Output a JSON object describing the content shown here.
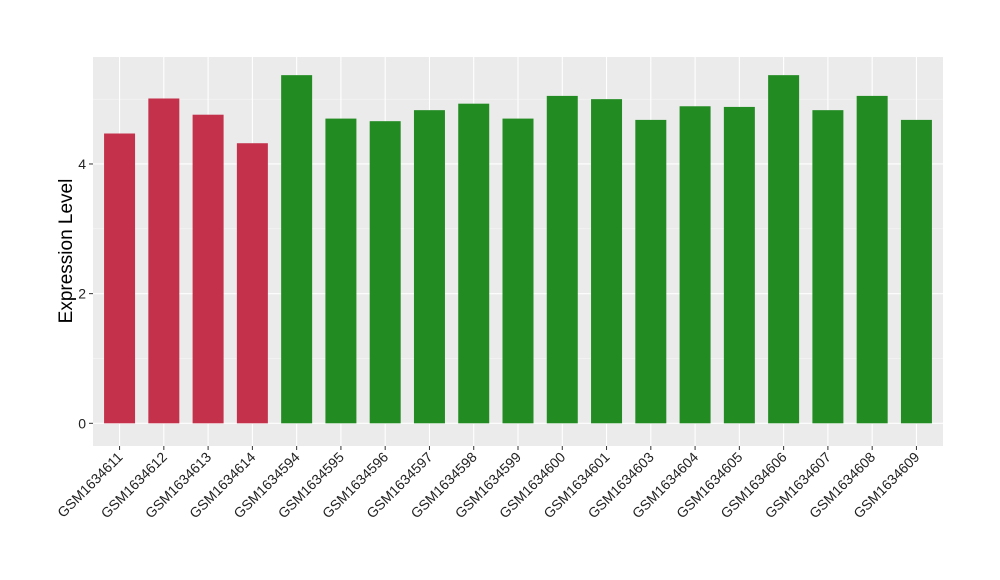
{
  "chart_data": {
    "type": "bar",
    "title": "",
    "xlabel": "",
    "ylabel": "Expression Level",
    "ylim": [
      -0.35,
      5.65
    ],
    "yticks": [
      0,
      2,
      4
    ],
    "grid": true,
    "legend": "none",
    "panel_background": "#ebebeb",
    "categories": [
      "GSM1634611",
      "GSM1634612",
      "GSM1634613",
      "GSM1634614",
      "GSM1634594",
      "GSM1634595",
      "GSM1634596",
      "GSM1634597",
      "GSM1634598",
      "GSM1634599",
      "GSM1634600",
      "GSM1634601",
      "GSM1634603",
      "GSM1634604",
      "GSM1634605",
      "GSM1634606",
      "GSM1634607",
      "GSM1634608",
      "GSM1634609"
    ],
    "values": [
      4.47,
      5.01,
      4.76,
      4.32,
      5.37,
      4.7,
      4.66,
      4.83,
      4.93,
      4.7,
      5.05,
      5.0,
      4.68,
      4.89,
      4.88,
      5.37,
      4.83,
      5.05,
      4.68
    ],
    "groups": [
      "g1",
      "g1",
      "g1",
      "g1",
      "g2",
      "g2",
      "g2",
      "g2",
      "g2",
      "g2",
      "g2",
      "g2",
      "g2",
      "g2",
      "g2",
      "g2",
      "g2",
      "g2",
      "g2"
    ],
    "group_colors": {
      "g1": "#c4314b",
      "g2": "#228b22"
    }
  }
}
